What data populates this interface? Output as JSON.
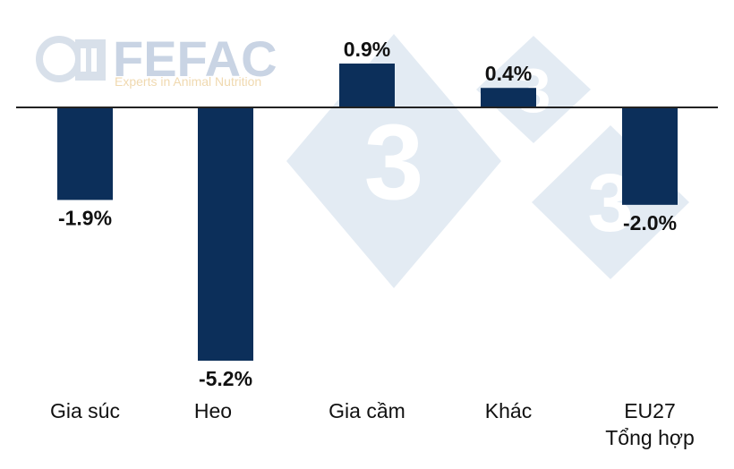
{
  "watermark": {
    "logo_name": "FEFAC",
    "logo_tagline": "Experts in Animal Nutrition",
    "diamond_glyph": "3",
    "colors": {
      "diamond": "#e3ebf3",
      "logo": "#c9d4e4",
      "tagline": "#f0d9b0"
    }
  },
  "chart_data": {
    "type": "bar",
    "categories": [
      [
        "Gia súc"
      ],
      [
        "Heo"
      ],
      [
        "Gia cầm"
      ],
      [
        "Khác"
      ],
      [
        "EU27",
        "Tổng hợp"
      ]
    ],
    "values": [
      -1.9,
      -5.2,
      0.9,
      0.4,
      -2.0
    ],
    "value_labels": [
      "-1.9%",
      "-5.2%",
      "0.9%",
      "0.4%",
      "-2.0%"
    ],
    "unit": "%",
    "ylim": [
      -5.2,
      0.9
    ],
    "axis_at_zero": true,
    "grid": false,
    "legend": "none",
    "title": "",
    "xlabel": "",
    "ylabel": "",
    "colors": {
      "bar": "#0c2f5a",
      "baseline": "#222222",
      "text": "#111111"
    }
  }
}
